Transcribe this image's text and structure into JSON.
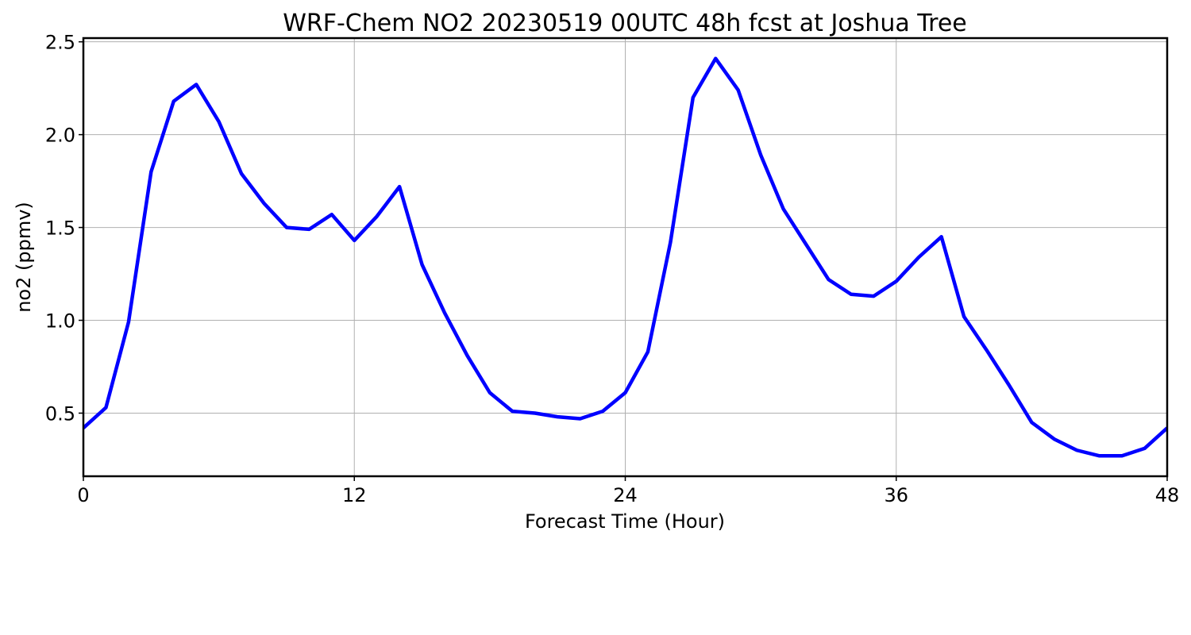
{
  "chart_data": {
    "type": "line",
    "title": "WRF-Chem NO2  20230519 00UTC 48h fcst at Joshua Tree",
    "xlabel": "Forecast Time (Hour)",
    "ylabel": "no2  (ppmv)",
    "xlim": [
      0,
      48
    ],
    "ylim": [
      0.16,
      2.52
    ],
    "xticks": [
      0,
      12,
      24,
      36,
      48
    ],
    "xtick_labels": [
      "0",
      "12",
      "24",
      "36",
      "48"
    ],
    "yticks": [
      0.5,
      1.0,
      1.5,
      2.0,
      2.5
    ],
    "ytick_labels": [
      "0.5",
      "1.0",
      "1.5",
      "2.0",
      "2.5"
    ],
    "grid": true,
    "legend": "none",
    "series_color": "#0000ff",
    "series": [
      {
        "x": [
          0,
          1,
          2,
          3,
          4,
          5,
          6,
          7,
          8,
          9,
          10,
          11,
          12,
          13,
          14,
          15,
          16,
          17,
          18,
          19,
          20,
          21,
          22,
          23,
          24,
          25,
          26,
          27,
          28,
          29,
          30,
          31,
          32,
          33,
          34,
          35,
          36,
          37,
          38,
          39,
          40,
          41,
          42,
          43,
          44,
          45,
          46,
          47,
          48
        ],
        "values": [
          0.42,
          0.53,
          0.99,
          1.8,
          2.18,
          2.27,
          2.07,
          1.79,
          1.63,
          1.5,
          1.49,
          1.57,
          1.43,
          1.56,
          1.72,
          1.3,
          1.04,
          0.81,
          0.61,
          0.51,
          0.5,
          0.48,
          0.47,
          0.51,
          0.61,
          0.83,
          1.42,
          2.2,
          2.41,
          2.24,
          1.89,
          1.6,
          1.41,
          1.22,
          1.14,
          1.13,
          1.21,
          1.34,
          1.45,
          1.02,
          0.84,
          0.65,
          0.45,
          0.36,
          0.3,
          0.27,
          0.27,
          0.31,
          0.42
        ]
      }
    ]
  }
}
